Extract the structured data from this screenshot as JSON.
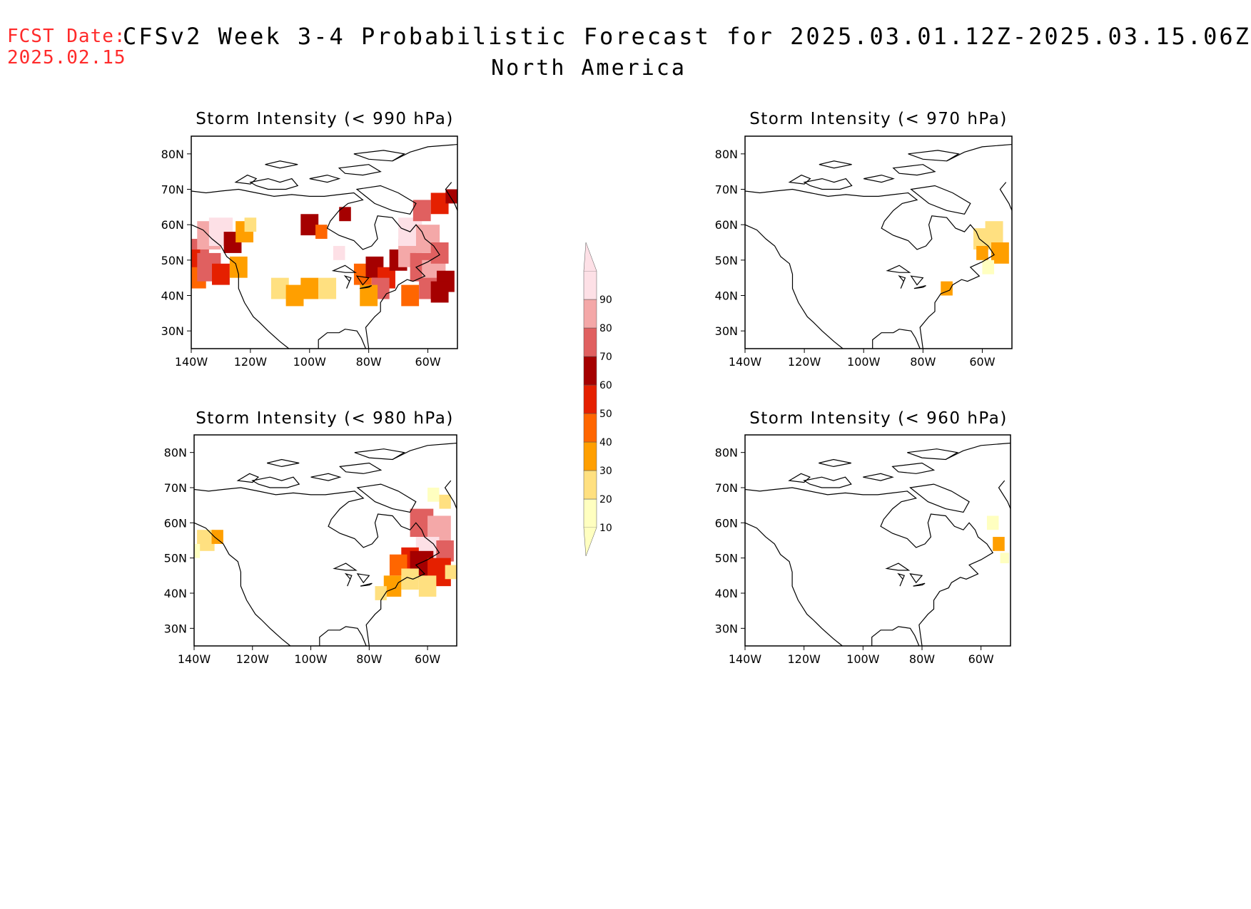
{
  "header": {
    "fcst_label": "FCST Date:",
    "fcst_date": "2025.02.15",
    "title": "CFSv2 Week 3-4 Probabilistic Forecast for 2025.03.01.12Z-2025.03.15.06Z",
    "region": "North America"
  },
  "axes": {
    "lat_labels": [
      "80N",
      "70N",
      "60N",
      "50N",
      "40N",
      "30N"
    ],
    "lon_labels": [
      "140W",
      "120W",
      "100W",
      "80W",
      "60W"
    ],
    "lon_range": [
      -140,
      -50
    ],
    "lat_range": [
      25,
      85
    ]
  },
  "colorbar": {
    "levels": [
      "10",
      "20",
      "30",
      "40",
      "50",
      "60",
      "70",
      "80",
      "90"
    ],
    "colors": [
      "#ffffc0",
      "#ffe080",
      "#ff9f00",
      "#ff6600",
      "#e52000",
      "#a50000",
      "#e06060",
      "#f4a8a8",
      "#fde0e6"
    ]
  },
  "panels": [
    {
      "title": "Storm Intensity (< 990 hPa)",
      "cells": [
        [
          -138,
          52,
          8,
          70
        ],
        [
          -134,
          57,
          8,
          80
        ],
        [
          -130,
          58,
          8,
          90
        ],
        [
          -126,
          55,
          6,
          60
        ],
        [
          -122,
          58,
          6,
          30
        ],
        [
          -140,
          50,
          6,
          50
        ],
        [
          -138,
          45,
          6,
          40
        ],
        [
          -134,
          48,
          8,
          70
        ],
        [
          -130,
          46,
          6,
          50
        ],
        [
          -124,
          48,
          6,
          30
        ],
        [
          -120,
          60,
          4,
          20
        ],
        [
          -110,
          42,
          6,
          20
        ],
        [
          -105,
          40,
          6,
          30
        ],
        [
          -100,
          42,
          6,
          30
        ],
        [
          -94,
          42,
          6,
          20
        ],
        [
          -100,
          60,
          6,
          60
        ],
        [
          -96,
          58,
          4,
          40
        ],
        [
          -90,
          52,
          4,
          90
        ],
        [
          -88,
          63,
          4,
          60
        ],
        [
          -82,
          46,
          6,
          40
        ],
        [
          -78,
          48,
          6,
          60
        ],
        [
          -74,
          45,
          6,
          50
        ],
        [
          -76,
          42,
          6,
          70
        ],
        [
          -80,
          40,
          6,
          30
        ],
        [
          -70,
          50,
          6,
          60
        ],
        [
          -66,
          52,
          8,
          80
        ],
        [
          -62,
          48,
          8,
          70
        ],
        [
          -58,
          46,
          8,
          80
        ],
        [
          -54,
          44,
          6,
          60
        ],
        [
          -66,
          40,
          6,
          40
        ],
        [
          -60,
          42,
          6,
          70
        ],
        [
          -56,
          41,
          6,
          60
        ],
        [
          -66,
          58,
          8,
          90
        ],
        [
          -60,
          56,
          8,
          80
        ],
        [
          -56,
          52,
          6,
          70
        ],
        [
          -62,
          64,
          6,
          70
        ],
        [
          -56,
          66,
          6,
          50
        ],
        [
          -52,
          68,
          4,
          60
        ]
      ]
    },
    {
      "title": "Storm Intensity (< 970 hPa)",
      "cells": [
        [
          -60,
          56,
          6,
          20
        ],
        [
          -56,
          58,
          6,
          20
        ],
        [
          -54,
          52,
          6,
          30
        ],
        [
          -60,
          52,
          4,
          30
        ],
        [
          -72,
          42,
          4,
          30
        ],
        [
          -58,
          48,
          4,
          10
        ]
      ]
    },
    {
      "title": "Storm Intensity (< 980 hPa)",
      "cells": [
        [
          -136,
          55,
          6,
          20
        ],
        [
          -132,
          56,
          4,
          30
        ],
        [
          -140,
          52,
          4,
          10
        ],
        [
          -62,
          60,
          8,
          70
        ],
        [
          -56,
          58,
          8,
          80
        ],
        [
          -60,
          52,
          8,
          90
        ],
        [
          -54,
          52,
          6,
          70
        ],
        [
          -66,
          50,
          6,
          50
        ],
        [
          -62,
          48,
          8,
          60
        ],
        [
          -56,
          46,
          8,
          50
        ],
        [
          -70,
          48,
          6,
          40
        ],
        [
          -66,
          44,
          6,
          20
        ],
        [
          -60,
          42,
          6,
          20
        ],
        [
          -72,
          42,
          6,
          30
        ],
        [
          -76,
          40,
          4,
          20
        ],
        [
          -54,
          66,
          4,
          20
        ],
        [
          -58,
          68,
          4,
          10
        ],
        [
          -52,
          46,
          4,
          20
        ]
      ]
    },
    {
      "title": "Storm Intensity (< 960 hPa)",
      "cells": [
        [
          -54,
          54,
          4,
          30
        ],
        [
          -56,
          60,
          4,
          10
        ],
        [
          -52,
          50,
          3,
          10
        ]
      ]
    }
  ]
}
